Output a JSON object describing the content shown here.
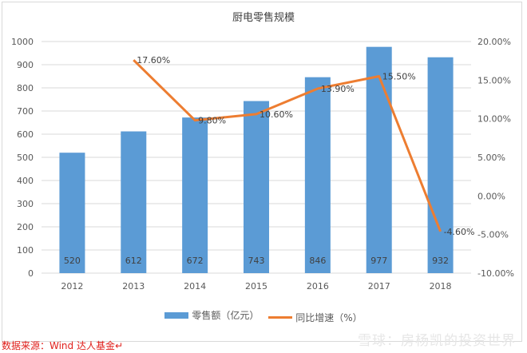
{
  "chart_data": {
    "type": "bar+line",
    "title": "厨电零售规模",
    "categories": [
      "2012",
      "2013",
      "2014",
      "2015",
      "2016",
      "2017",
      "2018"
    ],
    "series": [
      {
        "name": "零售额（亿元）",
        "type": "bar",
        "axis": "left",
        "color": "#5b9bd5",
        "values": [
          520,
          612,
          672,
          743,
          846,
          977,
          932
        ],
        "labels": [
          "520",
          "612",
          "672",
          "743",
          "846",
          "977",
          "932"
        ]
      },
      {
        "name": "同比增速（%）",
        "type": "line",
        "axis": "right",
        "color": "#ed7d31",
        "values": [
          null,
          17.6,
          9.8,
          10.6,
          13.9,
          15.5,
          -4.6
        ],
        "labels": [
          "",
          "17.60%",
          "9.80%",
          "10.60%",
          "13.90%",
          "15.50%",
          "-4.60%"
        ]
      }
    ],
    "y_left": {
      "range": [
        0,
        1000
      ],
      "ticks": [
        "0",
        "100",
        "200",
        "300",
        "400",
        "500",
        "600",
        "700",
        "800",
        "900",
        "1000"
      ]
    },
    "y_right": {
      "range": [
        -10,
        20
      ],
      "ticks": [
        "-10.00%",
        "-5.00%",
        "0.00%",
        "5.00%",
        "10.00%",
        "15.00%",
        "20.00%"
      ]
    },
    "grid": true,
    "legend": "bottom"
  },
  "source": "数据来源：Wind  达人基金↵",
  "watermark": "雪球：房杨凯的投资世界"
}
